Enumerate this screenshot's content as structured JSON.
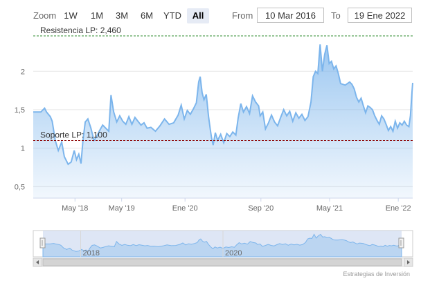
{
  "toolbar": {
    "zoom_label": "Zoom",
    "buttons": [
      "1W",
      "1M",
      "3M",
      "6M",
      "YTD",
      "All"
    ],
    "active_button": "All",
    "from_label": "From",
    "from_value": "10 Mar 2016",
    "to_label": "To",
    "to_value": "19 Ene 2022"
  },
  "chart_data": {
    "type": "area",
    "ylim": [
      0.35,
      2.55
    ],
    "y_ticks": [
      "0,5",
      "1",
      "1,5",
      "2"
    ],
    "x_ticks": [
      "May '18",
      "May '19",
      "Ene '20",
      "Sep '20",
      "May '21",
      "Ene '22"
    ],
    "navigator_labels": [
      "2018",
      "2020"
    ],
    "plot_lines": [
      {
        "label": "Resistencia LP: 2,460",
        "value": 2.46,
        "color": "#2e8b2e",
        "style": "dashed"
      },
      {
        "label": "Soporte LP: 1,100",
        "value": 1.1,
        "color": "#8b0000",
        "style": "dashed"
      }
    ],
    "series": [
      {
        "color": "#7cb5ec",
        "values": [
          [
            0,
            1.47
          ],
          [
            0.02,
            1.47
          ],
          [
            0.03,
            1.52
          ],
          [
            0.035,
            1.47
          ],
          [
            0.045,
            1.41
          ],
          [
            0.05,
            1.35
          ],
          [
            0.058,
            1.1
          ],
          [
            0.066,
            0.97
          ],
          [
            0.075,
            1.08
          ],
          [
            0.082,
            0.89
          ],
          [
            0.092,
            0.79
          ],
          [
            0.1,
            0.82
          ],
          [
            0.108,
            0.97
          ],
          [
            0.114,
            0.85
          ],
          [
            0.12,
            0.92
          ],
          [
            0.126,
            0.8
          ],
          [
            0.131,
            1.1
          ],
          [
            0.137,
            1.34
          ],
          [
            0.144,
            1.38
          ],
          [
            0.152,
            1.26
          ],
          [
            0.16,
            1.1
          ],
          [
            0.167,
            1.15
          ],
          [
            0.175,
            1.23
          ],
          [
            0.183,
            1.3
          ],
          [
            0.191,
            1.26
          ],
          [
            0.199,
            1.22
          ],
          [
            0.205,
            1.69
          ],
          [
            0.212,
            1.47
          ],
          [
            0.22,
            1.34
          ],
          [
            0.228,
            1.42
          ],
          [
            0.236,
            1.35
          ],
          [
            0.244,
            1.31
          ],
          [
            0.252,
            1.41
          ],
          [
            0.26,
            1.31
          ],
          [
            0.268,
            1.4
          ],
          [
            0.276,
            1.35
          ],
          [
            0.284,
            1.3
          ],
          [
            0.292,
            1.33
          ],
          [
            0.3,
            1.26
          ],
          [
            0.31,
            1.27
          ],
          [
            0.322,
            1.22
          ],
          [
            0.334,
            1.29
          ],
          [
            0.346,
            1.38
          ],
          [
            0.358,
            1.31
          ],
          [
            0.37,
            1.33
          ],
          [
            0.382,
            1.43
          ],
          [
            0.39,
            1.56
          ],
          [
            0.398,
            1.38
          ],
          [
            0.406,
            1.49
          ],
          [
            0.414,
            1.44
          ],
          [
            0.422,
            1.51
          ],
          [
            0.43,
            1.59
          ],
          [
            0.436,
            1.86
          ],
          [
            0.44,
            1.93
          ],
          [
            0.445,
            1.72
          ],
          [
            0.45,
            1.63
          ],
          [
            0.456,
            1.7
          ],
          [
            0.462,
            1.41
          ],
          [
            0.467,
            1.23
          ],
          [
            0.47,
            1.13
          ],
          [
            0.474,
            1.04
          ],
          [
            0.48,
            1.2
          ],
          [
            0.486,
            1.1
          ],
          [
            0.494,
            1.18
          ],
          [
            0.502,
            1.07
          ],
          [
            0.51,
            1.19
          ],
          [
            0.518,
            1.15
          ],
          [
            0.526,
            1.21
          ],
          [
            0.534,
            1.17
          ],
          [
            0.54,
            1.39
          ],
          [
            0.547,
            1.58
          ],
          [
            0.554,
            1.47
          ],
          [
            0.562,
            1.54
          ],
          [
            0.57,
            1.45
          ],
          [
            0.578,
            1.68
          ],
          [
            0.586,
            1.6
          ],
          [
            0.594,
            1.55
          ],
          [
            0.598,
            1.42
          ],
          [
            0.605,
            1.47
          ],
          [
            0.612,
            1.25
          ],
          [
            0.62,
            1.33
          ],
          [
            0.628,
            1.43
          ],
          [
            0.636,
            1.34
          ],
          [
            0.644,
            1.29
          ],
          [
            0.652,
            1.4
          ],
          [
            0.66,
            1.5
          ],
          [
            0.668,
            1.42
          ],
          [
            0.676,
            1.48
          ],
          [
            0.684,
            1.35
          ],
          [
            0.692,
            1.46
          ],
          [
            0.7,
            1.39
          ],
          [
            0.708,
            1.44
          ],
          [
            0.716,
            1.36
          ],
          [
            0.724,
            1.41
          ],
          [
            0.732,
            1.6
          ],
          [
            0.738,
            1.93
          ],
          [
            0.744,
            2.0
          ],
          [
            0.75,
            1.97
          ],
          [
            0.756,
            2.35
          ],
          [
            0.762,
            2.0
          ],
          [
            0.768,
            2.22
          ],
          [
            0.774,
            2.34
          ],
          [
            0.78,
            2.1
          ],
          [
            0.786,
            2.13
          ],
          [
            0.792,
            2.03
          ],
          [
            0.798,
            2.07
          ],
          [
            0.804,
            1.97
          ],
          [
            0.81,
            1.84
          ],
          [
            0.816,
            1.83
          ],
          [
            0.822,
            1.82
          ],
          [
            0.828,
            1.84
          ],
          [
            0.834,
            1.86
          ],
          [
            0.84,
            1.83
          ],
          [
            0.846,
            1.77
          ],
          [
            0.852,
            1.66
          ],
          [
            0.858,
            1.6
          ],
          [
            0.864,
            1.65
          ],
          [
            0.87,
            1.55
          ],
          [
            0.876,
            1.46
          ],
          [
            0.882,
            1.55
          ],
          [
            0.888,
            1.53
          ],
          [
            0.894,
            1.5
          ],
          [
            0.9,
            1.42
          ],
          [
            0.906,
            1.36
          ],
          [
            0.912,
            1.31
          ],
          [
            0.918,
            1.42
          ],
          [
            0.924,
            1.38
          ],
          [
            0.93,
            1.31
          ],
          [
            0.936,
            1.23
          ],
          [
            0.942,
            1.28
          ],
          [
            0.948,
            1.22
          ],
          [
            0.954,
            1.35
          ],
          [
            0.96,
            1.26
          ],
          [
            0.966,
            1.33
          ],
          [
            0.972,
            1.3
          ],
          [
            0.978,
            1.35
          ],
          [
            0.984,
            1.3
          ],
          [
            0.99,
            1.28
          ],
          [
            0.994,
            1.42
          ],
          [
            0.998,
            1.72
          ],
          [
            1.0,
            1.85
          ]
        ]
      }
    ]
  },
  "credit": "Estrategias de Inversión"
}
